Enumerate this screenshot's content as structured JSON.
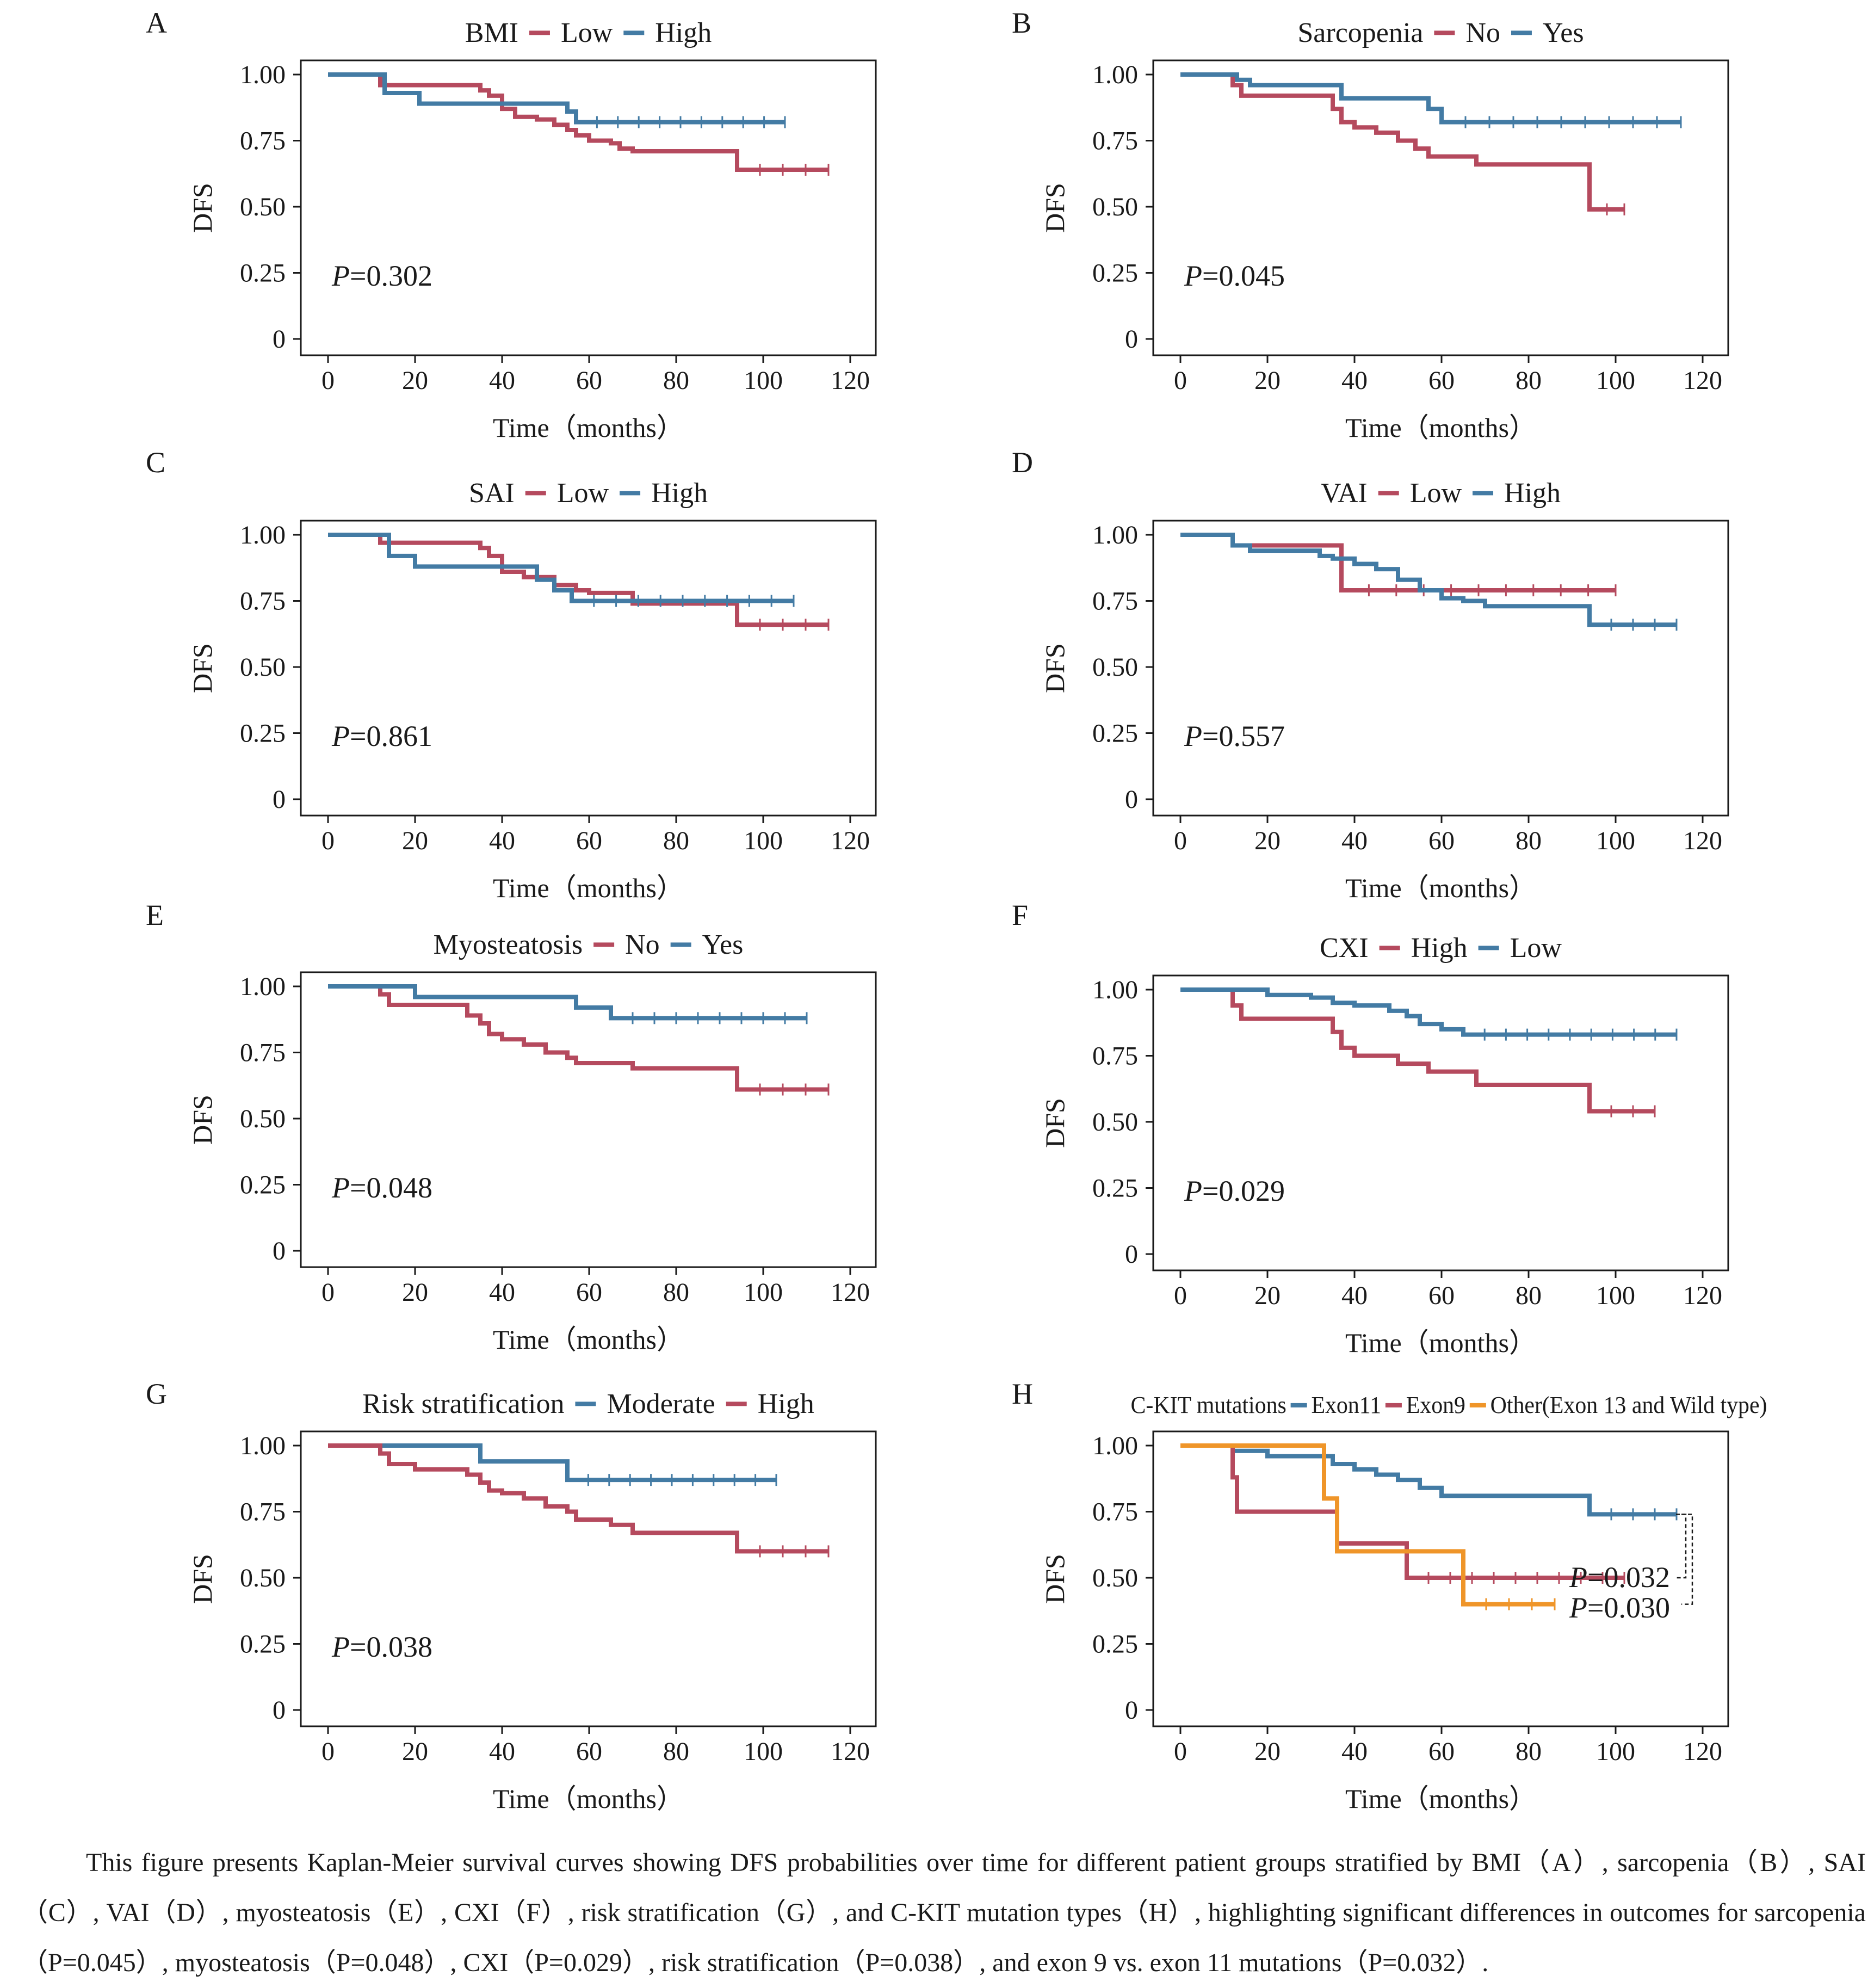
{
  "colors": {
    "red": "#b54a5e",
    "blue": "#437ba4",
    "orange": "#ef9529",
    "axis": "#1a1a1a"
  },
  "caption": "This figure presents Kaplan-Meier survival curves showing DFS probabilities over time for different patient groups stratified by BMI（A）, sarcopenia（B）, SAI（C）, VAI（D）, myosteatosis（E）, CXI（F）, risk stratification（G）, and C-KIT mutation types（H）, highlighting significant differences in outcomes for sarcopenia（P=0.045）, myosteatosis（P=0.048）, CXI（P=0.029）, risk stratification（P=0.038）, and exon 9 vs. exon 11 mutations（P=0.032）.",
  "chart_data": [
    {
      "panel": "A",
      "type": "line",
      "title": "BMI",
      "xlabel": "Time（months）",
      "ylabel": "DFS",
      "xlim": [
        0,
        120
      ],
      "ylim": [
        0,
        1
      ],
      "xticks": [
        "0",
        "20",
        "40",
        "60",
        "80",
        "100",
        "120"
      ],
      "yticks": [
        "0",
        "0.25",
        "0.50",
        "0.75",
        "1.00"
      ],
      "pvalues": [
        "=0.302"
      ],
      "series": [
        {
          "name": "Low",
          "color": "#b54a5e",
          "x": [
            0,
            12,
            32,
            35,
            37,
            40,
            43,
            48,
            52,
            55,
            57,
            60,
            65,
            67,
            70,
            94,
            115
          ],
          "y": [
            1.0,
            0.96,
            0.96,
            0.94,
            0.92,
            0.87,
            0.84,
            0.83,
            0.81,
            0.79,
            0.77,
            0.75,
            0.74,
            0.72,
            0.71,
            0.64,
            0.64
          ]
        },
        {
          "name": "High",
          "color": "#437ba4",
          "x": [
            0,
            13,
            21,
            40,
            55,
            57,
            105
          ],
          "y": [
            1.0,
            0.93,
            0.89,
            0.89,
            0.86,
            0.82,
            0.82
          ]
        }
      ]
    },
    {
      "panel": "B",
      "type": "line",
      "title": "Sarcopenia",
      "xlabel": "Time（months）",
      "ylabel": "DFS",
      "xlim": [
        0,
        120
      ],
      "ylim": [
        0,
        1
      ],
      "xticks": [
        "0",
        "20",
        "40",
        "60",
        "80",
        "100",
        "120"
      ],
      "yticks": [
        "0",
        "0.25",
        "0.50",
        "0.75",
        "1.00"
      ],
      "pvalues": [
        "=0.045"
      ],
      "series": [
        {
          "name": "No",
          "color": "#b54a5e",
          "x": [
            0,
            12,
            14,
            28,
            35,
            37,
            40,
            45,
            50,
            54,
            57,
            68,
            94,
            102
          ],
          "y": [
            1.0,
            0.96,
            0.92,
            0.92,
            0.87,
            0.82,
            0.8,
            0.78,
            0.75,
            0.72,
            0.69,
            0.66,
            0.49,
            0.49
          ]
        },
        {
          "name": "Yes",
          "color": "#437ba4",
          "x": [
            0,
            13,
            16,
            35,
            37,
            50,
            57,
            60,
            115
          ],
          "y": [
            1.0,
            0.98,
            0.96,
            0.96,
            0.91,
            0.91,
            0.87,
            0.82,
            0.82
          ]
        }
      ]
    },
    {
      "panel": "C",
      "type": "line",
      "title": "SAI",
      "xlabel": "Time（months）",
      "ylabel": "DFS",
      "xlim": [
        0,
        120
      ],
      "ylim": [
        0,
        1
      ],
      "xticks": [
        "0",
        "20",
        "40",
        "60",
        "80",
        "100",
        "120"
      ],
      "yticks": [
        "0",
        "0.25",
        "0.50",
        "0.75",
        "1.00"
      ],
      "pvalues": [
        "=0.861"
      ],
      "series": [
        {
          "name": "Low",
          "color": "#b54a5e",
          "x": [
            0,
            12,
            32,
            35,
            37,
            40,
            45,
            52,
            57,
            60,
            70,
            94,
            115
          ],
          "y": [
            1.0,
            0.97,
            0.97,
            0.95,
            0.92,
            0.86,
            0.84,
            0.81,
            0.79,
            0.78,
            0.74,
            0.66,
            0.66
          ]
        },
        {
          "name": "High",
          "color": "#437ba4",
          "x": [
            0,
            14,
            20,
            40,
            48,
            52,
            56,
            107
          ],
          "y": [
            1.0,
            0.92,
            0.88,
            0.88,
            0.83,
            0.79,
            0.75,
            0.75
          ]
        }
      ]
    },
    {
      "panel": "D",
      "type": "line",
      "title": "VAI",
      "xlabel": "Time（months）",
      "ylabel": "DFS",
      "xlim": [
        0,
        120
      ],
      "ylim": [
        0,
        1
      ],
      "xticks": [
        "0",
        "20",
        "40",
        "60",
        "80",
        "100",
        "120"
      ],
      "yticks": [
        "0",
        "0.25",
        "0.50",
        "0.75",
        "1.00"
      ],
      "pvalues": [
        "=0.557"
      ],
      "series": [
        {
          "name": "Low",
          "color": "#b54a5e",
          "x": [
            0,
            12,
            35,
            37,
            100
          ],
          "y": [
            1.0,
            0.96,
            0.96,
            0.79,
            0.79
          ]
        },
        {
          "name": "High",
          "color": "#437ba4",
          "x": [
            0,
            12,
            16,
            32,
            35,
            40,
            45,
            50,
            55,
            60,
            65,
            70,
            94,
            114
          ],
          "y": [
            1.0,
            0.96,
            0.94,
            0.92,
            0.91,
            0.89,
            0.87,
            0.83,
            0.79,
            0.76,
            0.75,
            0.73,
            0.66,
            0.66
          ]
        }
      ]
    },
    {
      "panel": "E",
      "type": "line",
      "title": "Myosteatosis",
      "xlabel": "Time（months）",
      "ylabel": "DFS",
      "xlim": [
        0,
        120
      ],
      "ylim": [
        0,
        1
      ],
      "xticks": [
        "0",
        "20",
        "40",
        "60",
        "80",
        "100",
        "120"
      ],
      "yticks": [
        "0",
        "0.25",
        "0.50",
        "0.75",
        "1.00"
      ],
      "pvalues": [
        "=0.048"
      ],
      "series": [
        {
          "name": "No",
          "color": "#b54a5e",
          "x": [
            0,
            12,
            14,
            28,
            32,
            35,
            37,
            40,
            45,
            50,
            55,
            57,
            70,
            94,
            115
          ],
          "y": [
            1.0,
            0.97,
            0.93,
            0.93,
            0.89,
            0.86,
            0.82,
            0.8,
            0.78,
            0.75,
            0.73,
            0.71,
            0.69,
            0.61,
            0.61
          ]
        },
        {
          "name": "Yes",
          "color": "#437ba4",
          "x": [
            0,
            20,
            57,
            65,
            110
          ],
          "y": [
            1.0,
            0.96,
            0.92,
            0.88,
            0.88
          ]
        }
      ]
    },
    {
      "panel": "F",
      "type": "line",
      "title": "CXI",
      "xlabel": "Time（months）",
      "ylabel": "DFS",
      "xlim": [
        0,
        120
      ],
      "ylim": [
        0,
        1
      ],
      "xticks": [
        "0",
        "20",
        "40",
        "60",
        "80",
        "100",
        "120"
      ],
      "yticks": [
        "0",
        "0.25",
        "0.50",
        "0.75",
        "1.00"
      ],
      "pvalues": [
        "=0.029"
      ],
      "series": [
        {
          "name": "High",
          "color": "#b54a5e",
          "x": [
            0,
            12,
            14,
            28,
            35,
            37,
            40,
            50,
            57,
            68,
            94,
            109
          ],
          "y": [
            1.0,
            0.94,
            0.89,
            0.89,
            0.84,
            0.78,
            0.75,
            0.72,
            0.69,
            0.64,
            0.54,
            0.54
          ]
        },
        {
          "name": "Low",
          "color": "#437ba4",
          "x": [
            0,
            20,
            30,
            35,
            40,
            48,
            52,
            55,
            60,
            65,
            114
          ],
          "y": [
            1.0,
            0.98,
            0.97,
            0.95,
            0.94,
            0.92,
            0.9,
            0.87,
            0.85,
            0.83,
            0.83
          ]
        }
      ]
    },
    {
      "panel": "G",
      "type": "line",
      "title": "Risk stratification",
      "xlabel": "Time（months）",
      "ylabel": "DFS",
      "xlim": [
        0,
        120
      ],
      "ylim": [
        0,
        1
      ],
      "xticks": [
        "0",
        "20",
        "40",
        "60",
        "80",
        "100",
        "120"
      ],
      "yticks": [
        "0",
        "0.25",
        "0.50",
        "0.75",
        "1.00"
      ],
      "pvalues": [
        "=0.038"
      ],
      "series": [
        {
          "name": "Moderate",
          "color": "#437ba4",
          "x": [
            0,
            35,
            55,
            103
          ],
          "y": [
            1.0,
            0.94,
            0.87,
            0.87
          ]
        },
        {
          "name": "High",
          "color": "#b54a5e",
          "x": [
            0,
            12,
            14,
            20,
            32,
            35,
            37,
            40,
            45,
            50,
            55,
            57,
            65,
            70,
            94,
            115
          ],
          "y": [
            1.0,
            0.97,
            0.93,
            0.91,
            0.89,
            0.86,
            0.83,
            0.82,
            0.8,
            0.77,
            0.75,
            0.72,
            0.7,
            0.67,
            0.6,
            0.6
          ]
        }
      ]
    },
    {
      "panel": "H",
      "type": "line",
      "title": "C-KIT mutations",
      "xlabel": "Time（months）",
      "ylabel": "DFS",
      "xlim": [
        0,
        120
      ],
      "ylim": [
        0,
        1
      ],
      "xticks": [
        "0",
        "20",
        "40",
        "60",
        "80",
        "100",
        "120"
      ],
      "yticks": [
        "0",
        "0.25",
        "0.50",
        "0.75",
        "1.00"
      ],
      "pvalues": [
        "=0.032",
        "=0.030"
      ],
      "series": [
        {
          "name": "Exon11",
          "color": "#437ba4",
          "x": [
            0,
            12,
            20,
            35,
            40,
            45,
            50,
            55,
            60,
            94,
            114
          ],
          "y": [
            1.0,
            0.98,
            0.96,
            0.93,
            0.91,
            0.89,
            0.87,
            0.84,
            0.81,
            0.74,
            0.74
          ]
        },
        {
          "name": "Exon9",
          "color": "#b54a5e",
          "x": [
            0,
            12,
            13,
            36,
            52,
            102
          ],
          "y": [
            1.0,
            0.88,
            0.75,
            0.63,
            0.5,
            0.5
          ]
        },
        {
          "name": "Other(Exon 13 and Wild type)",
          "color": "#ef9529",
          "x": [
            0,
            33,
            36,
            65,
            86
          ],
          "y": [
            1.0,
            0.8,
            0.6,
            0.4,
            0.4
          ]
        }
      ]
    }
  ]
}
